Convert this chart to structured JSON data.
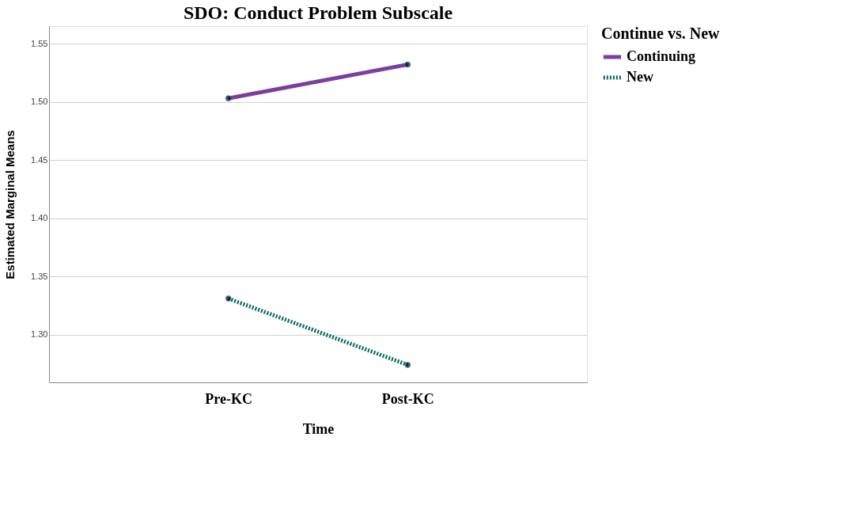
{
  "chart_data": {
    "type": "line",
    "title": "SDO: Conduct Problem Subscale",
    "xlabel": "Time",
    "ylabel": "Estimated Marginal Means",
    "legend_title": "Continue vs. New",
    "categories": [
      "Pre-KC",
      "Post-KC"
    ],
    "series": [
      {
        "name": "Continuing",
        "color": "#7b3f9e",
        "values": [
          1.503,
          1.532
        ],
        "line_style": "solid"
      },
      {
        "name": "New",
        "color": "#00695f",
        "values": [
          1.331,
          1.274
        ],
        "line_style": "dotted"
      }
    ],
    "ylim": [
      1.259,
      1.565
    ],
    "yticks": [
      {
        "value": 1.3,
        "label": "1.30"
      },
      {
        "value": 1.35,
        "label": "1.35"
      },
      {
        "value": 1.4,
        "label": "1.40"
      },
      {
        "value": 1.45,
        "label": "1.45"
      },
      {
        "value": 1.5,
        "label": "1.50"
      },
      {
        "value": 1.55,
        "label": "1.55"
      }
    ],
    "grid": "y",
    "legend": "top right",
    "marker": "circle"
  }
}
